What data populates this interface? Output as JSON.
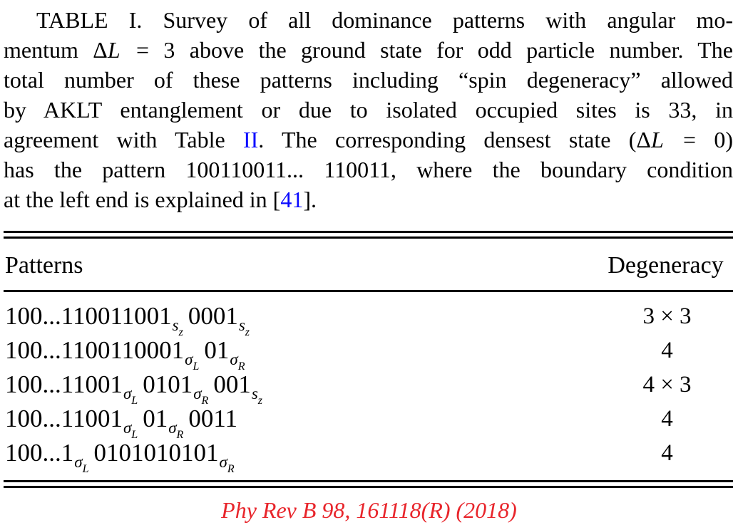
{
  "colors": {
    "text": "#000000",
    "link": "#0a0aff",
    "citation_red": "#e8252b",
    "rule": "#000000",
    "background": "#ffffff"
  },
  "caption": {
    "lines": [
      {
        "indent": true,
        "justify": true,
        "segments": [
          {
            "t": "TABLE I. Survey of all dominance patterns with angular mo-"
          }
        ]
      },
      {
        "justify": true,
        "segments": [
          {
            "t": "mentum "
          },
          {
            "t": "Δ",
            "cls": "math"
          },
          {
            "t": "L",
            "cls": "mathit"
          },
          {
            "t": " = 3 above the ground state for odd particle number. The"
          }
        ]
      },
      {
        "justify": true,
        "segments": [
          {
            "t": "total number of these patterns including “spin degeneracy” allowed"
          }
        ]
      },
      {
        "justify": true,
        "segments": [
          {
            "t": "by AKLT entanglement or due to isolated occupied sites is 33, in"
          }
        ]
      },
      {
        "justify": true,
        "segments": [
          {
            "t": "agreement with Table "
          },
          {
            "t": "II",
            "cls": "link",
            "name": "table-ii-link"
          },
          {
            "t": ". The corresponding densest state ("
          },
          {
            "t": "Δ",
            "cls": "math"
          },
          {
            "t": "L",
            "cls": "mathit"
          },
          {
            "t": " = 0)"
          }
        ]
      },
      {
        "justify": true,
        "segments": [
          {
            "t": "has the pattern 100110011... 110011, where the boundary condition"
          }
        ]
      },
      {
        "justify": false,
        "segments": [
          {
            "t": "at the left end is explained in ["
          },
          {
            "t": "41",
            "cls": "link",
            "name": "ref-41-link"
          },
          {
            "t": "]."
          }
        ]
      }
    ]
  },
  "table": {
    "header": {
      "patterns": "Patterns",
      "degeneracy": "Degeneracy"
    },
    "subscripts": {
      "sz": {
        "base": "s",
        "sub": "z"
      },
      "sigL": {
        "base": "σ",
        "sub": "L"
      },
      "sigR": {
        "base": "σ",
        "sub": "R"
      }
    },
    "rows": [
      {
        "pattern": [
          {
            "t": "100...110011001",
            "sub": "sz"
          },
          {
            "t": "0001",
            "sub": "sz"
          }
        ],
        "degeneracy": "3 × 3"
      },
      {
        "pattern": [
          {
            "t": "100...1100110001",
            "sub": "sigL"
          },
          {
            "t": "01",
            "sub": "sigR"
          }
        ],
        "degeneracy": "4"
      },
      {
        "pattern": [
          {
            "t": "100...11001",
            "sub": "sigL"
          },
          {
            "t": "0101",
            "sub": "sigR"
          },
          {
            "t": "001",
            "sub": "sz"
          }
        ],
        "degeneracy": "4 × 3"
      },
      {
        "pattern": [
          {
            "t": "100...11001",
            "sub": "sigL"
          },
          {
            "t": "01",
            "sub": "sigR"
          },
          {
            "t": "0011"
          }
        ],
        "degeneracy": "4"
      },
      {
        "pattern": [
          {
            "t": "100...1",
            "sub": "sigL"
          },
          {
            "t": "0101010101",
            "sub": "sigR"
          }
        ],
        "degeneracy": "4"
      }
    ]
  },
  "footer": {
    "citation": "Phy Rev B 98, 161118(R) (2018)"
  }
}
